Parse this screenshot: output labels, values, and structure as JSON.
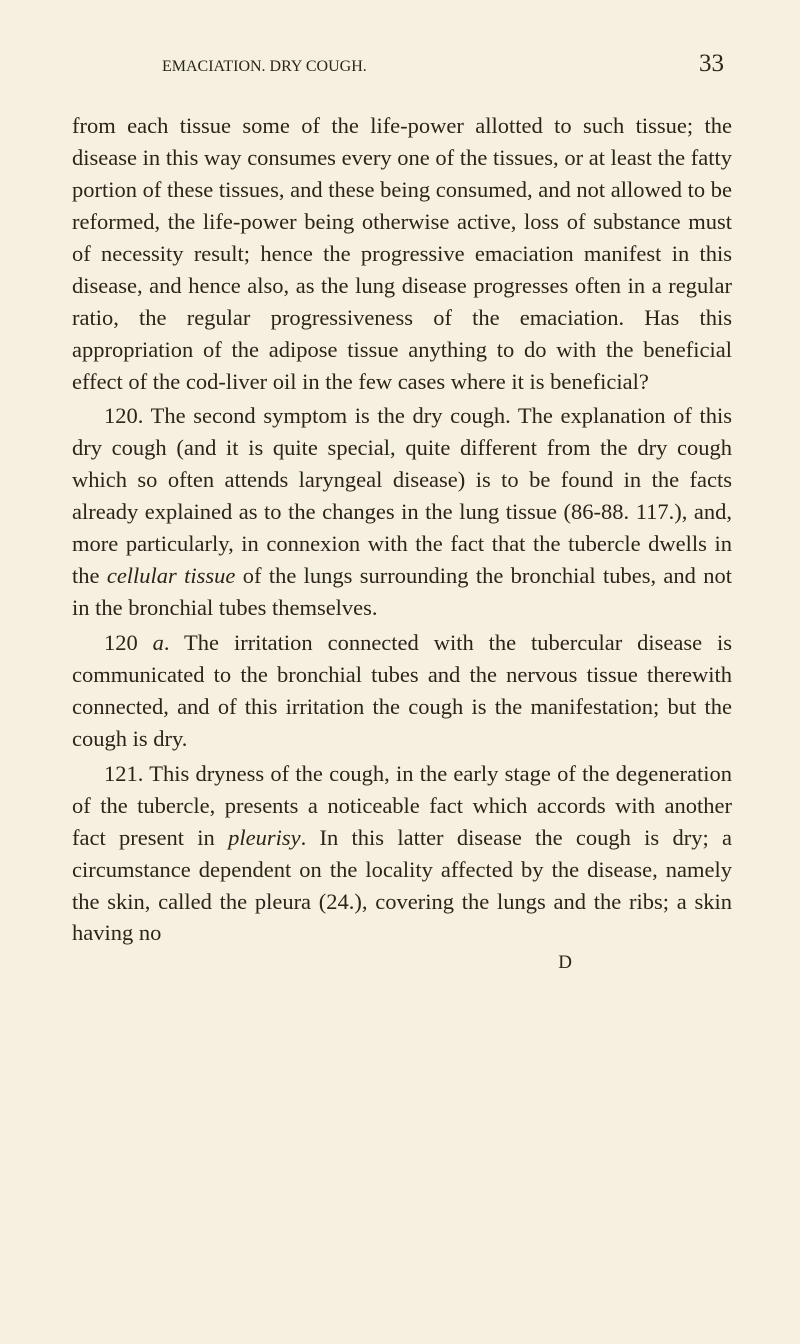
{
  "header": {
    "title": "EMACIATION.  DRY COUGH.",
    "page_number": "33"
  },
  "paragraphs": {
    "p1": "from each tissue some of the life-power allotted to such tissue; the disease in this way consumes every one of the tissues, or at least the fatty portion of these tissues, and these being consumed, and not allowed to be reformed, the life-power being other­wise active, loss of substance must of necessity result; hence the progressive emaciation manifest in this disease, and hence also, as the lung disease progresses often in a regular ratio, the regular progressiveness of the emaciation. Has this appropriation of the adipose tissue anything to do with the beneficial effect of the cod-liver oil in the few cases where it is beneficial?",
    "p2_a": "120. The second symptom is the dry cough. The explanation of this dry cough (and it is quite special, quite different from the dry cough which so often attends laryngeal disease) is to be found in the facts already explained as to the changes in the lung tissue (86-88. 117.), and, more particularly, in connexion with the fact that the tubercle dwells in the ",
    "p2_cellular": "cellular tissue",
    "p2_b": " of the lungs surrounding the bronchial tubes, and not in the bronchial tubes themselves.",
    "p3_a": "120 ",
    "p3_italic": "a",
    "p3_b": ". The irritation connected with the tubercular disease is communicated to the bronchial tubes and the nervous tissue therewith connected, and of this irritation the cough is the manifestation; but the cough is dry.",
    "p4_a": "121. This dryness of the cough, in the early stage of the degeneration of the tubercle, presents a notice­able fact which accords with another fact present in ",
    "p4_pleurisy": "pleurisy",
    "p4_b": ". In this latter disease the cough is dry; a circumstance dependent on the locality affected by the disease, namely the skin, called the pleura (24.), covering the lungs and the ribs; a skin having no",
    "signature": "D"
  }
}
